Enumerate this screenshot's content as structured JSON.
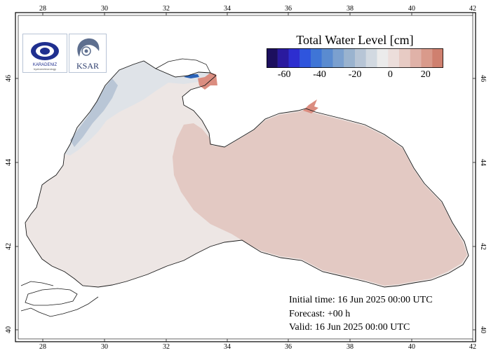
{
  "map": {
    "lon_ticks": [
      "28",
      "30",
      "32",
      "34",
      "36",
      "38",
      "40",
      "42"
    ],
    "lat_ticks": [
      "40",
      "42",
      "44",
      "46"
    ],
    "colors": {
      "sea_base": "#ede6e4",
      "sea_warm": "#e3c9c3",
      "northwest_shelf": "#dfe3e8",
      "coastal_blue": "#b9c6d6",
      "deep_blue": "#2b63b8",
      "hot_spot": "#db8d80",
      "coastline": "#1a1a1a"
    }
  },
  "colorbar": {
    "title": "Total Water Level [cm]",
    "labels": [
      "-60",
      "-40",
      "-20",
      "0",
      "20"
    ],
    "colors": [
      "#1c0f5e",
      "#2a1a9e",
      "#2d2ed0",
      "#2f55dd",
      "#3f75d6",
      "#5a8bd0",
      "#7ba0cf",
      "#9ab3cf",
      "#b7c5d6",
      "#d2d9e1",
      "#ebebeb",
      "#ecdedb",
      "#e7cbc4",
      "#e0b2a8",
      "#d99a8b",
      "#cf806f"
    ]
  },
  "info": {
    "initial_time": "Initial time: 16 Jun 2025 00:00 UTC",
    "forecast": "Forecast: +00 h",
    "valid": "Valid: 16 Jun 2025 00:00 UTC"
  },
  "logos": {
    "left_name": "KARADENIZ",
    "left_sub": "hydrometeorology",
    "right_name": "KSAR"
  }
}
